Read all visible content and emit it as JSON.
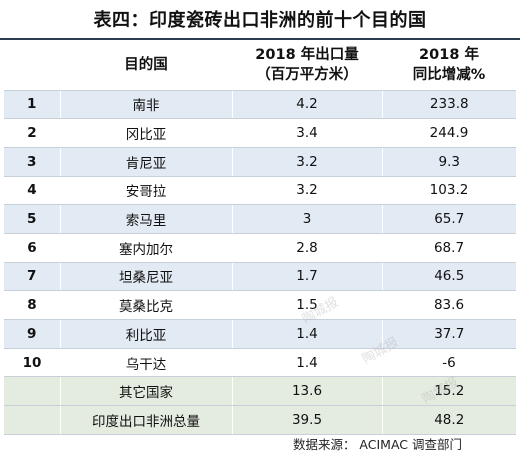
{
  "title": "表四：印度瓷砖出口非洲的前十个目的国",
  "table": {
    "headers": {
      "rank": "",
      "country": "目的国",
      "volume_line1": "2018 年出口量",
      "volume_line2": "（百万平方米）",
      "growth_line1": "2018 年",
      "growth_line2": "同比增减%"
    },
    "rows": [
      {
        "rank": "1",
        "country": "南非",
        "volume": "4.2",
        "growth": "233.8"
      },
      {
        "rank": "2",
        "country": "冈比亚",
        "volume": "3.4",
        "growth": "244.9"
      },
      {
        "rank": "3",
        "country": "肯尼亚",
        "volume": "3.2",
        "growth": "9.3"
      },
      {
        "rank": "4",
        "country": "安哥拉",
        "volume": "3.2",
        "growth": "103.2"
      },
      {
        "rank": "5",
        "country": "索马里",
        "volume": "3",
        "growth": "65.7"
      },
      {
        "rank": "6",
        "country": "塞内加尔",
        "volume": "2.8",
        "growth": "68.7"
      },
      {
        "rank": "7",
        "country": "坦桑尼亚",
        "volume": "1.7",
        "growth": "46.5"
      },
      {
        "rank": "8",
        "country": "莫桑比克",
        "volume": "1.5",
        "growth": "83.6"
      },
      {
        "rank": "9",
        "country": "利比亚",
        "volume": "1.4",
        "growth": "37.7"
      },
      {
        "rank": "10",
        "country": "乌干达",
        "volume": "1.4",
        "growth": "-6"
      }
    ],
    "summary": [
      {
        "label": "其它国家",
        "volume": "13.6",
        "growth": "15.2"
      },
      {
        "label": "印度出口非洲总量",
        "volume": "39.5",
        "growth": "48.2"
      }
    ]
  },
  "source": "数据来源： ACIMAC 调查部门",
  "watermark": "陶城报",
  "colors": {
    "row_shade": "#e2eaf3",
    "summary_shade": "#e4ece0",
    "title_rule": "#2a3c4f"
  }
}
